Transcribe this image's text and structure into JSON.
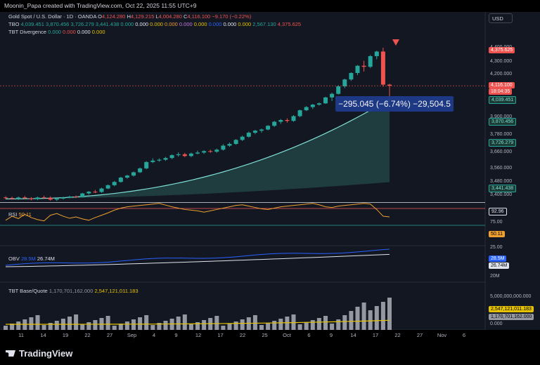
{
  "header": {
    "caption": "Moonin_Papa created with TradingView.com, Oct 22, 2025 11:55 UTC+9",
    "symbol_line": "Gold Spot / U.S. Dollar · 1D · OANDA",
    "ohlc": {
      "o_label": "O",
      "o": "4,124.280",
      "h_label": "H",
      "h": "4,129.215",
      "l_label": "L",
      "l": "4,004.280",
      "c_label": "C",
      "c": "4,116.100",
      "change": "−9.170 (−0.22%)"
    },
    "tbo_line": {
      "name": "TBO",
      "values": [
        "4,039.451",
        "3,870.456",
        "3,726.279",
        "3,441.438",
        "0.000",
        "0.000",
        "0.000",
        "0.000",
        "0.000",
        "0.000",
        "0.000",
        "0.000",
        "0.000",
        "2,567.130",
        "4,375.625"
      ]
    },
    "tbt_div_line": {
      "name": "TBT Divergence",
      "values": [
        "0.000",
        "0.000",
        "0.000",
        "0.000"
      ]
    },
    "currency_button": "USD"
  },
  "price_axis": {
    "labels": [
      "4,400.000",
      "4,300.000",
      "4,200.000",
      "3,900.000",
      "3,780.000",
      "3,660.000",
      "3,560.000",
      "3,480.000",
      "3,400.000"
    ],
    "tags": {
      "high": "4,375.625",
      "last": "4,116.100",
      "countdown": "18:04:35",
      "tbo_fast": "4,039.451",
      "tbo_mid": "3,870.456",
      "tbo_slow": "3,726.279",
      "tbo_base": "3,441.438"
    }
  },
  "measure": {
    "text": "−295.045 (−6.74%) −29,504.5"
  },
  "rsi": {
    "label": "RSI",
    "value": "50.11",
    "axis": [
      "92.96",
      "75.00",
      "25.00"
    ],
    "tag": "50.11"
  },
  "obv": {
    "label": "OBV",
    "v1": "28.5M",
    "v2": "26.74M",
    "axis": [
      "20M"
    ],
    "tags": [
      "28.5M",
      "26.74M"
    ]
  },
  "tbt": {
    "label": "TBT Base/Quote",
    "v1": "1,170,701,162.000",
    "v2": "2,547,121,011.183",
    "axis": [
      "5,000,000,000.000",
      "0.000"
    ],
    "tags": [
      "2,547,121,011.183",
      "1,170,701,162.000"
    ]
  },
  "x_axis": [
    "11",
    "14",
    "19",
    "22",
    "27",
    "Sep",
    "4",
    "9",
    "12",
    "17",
    "22",
    "25",
    "Oct",
    "6",
    "9",
    "14",
    "17",
    "22",
    "27",
    "Nov",
    "6"
  ],
  "footer": {
    "brand": "TradingView"
  },
  "colors": {
    "up": "#26a69a",
    "down": "#ef5350",
    "bg": "#131722",
    "ribbon": "#7fe0d8",
    "rsi_line": "#f0a030",
    "obv_fast": "#2962ff",
    "obv_slow": "#e0e3eb",
    "vol_avg": "#e6c300",
    "vol_bar": "#9598a1"
  },
  "chart_data": {
    "type": "candlestick",
    "symbol": "XAUUSD",
    "timeframe": "1D",
    "last": 4116.1,
    "high_marker": 4375.625,
    "candles": [
      [
        3340,
        3348,
        3328,
        3336
      ],
      [
        3336,
        3345,
        3325,
        3330
      ],
      [
        3330,
        3346,
        3322,
        3340
      ],
      [
        3340,
        3350,
        3330,
        3334
      ],
      [
        3334,
        3342,
        3320,
        3328
      ],
      [
        3328,
        3345,
        3322,
        3340
      ],
      [
        3340,
        3352,
        3332,
        3338
      ],
      [
        3338,
        3348,
        3318,
        3325
      ],
      [
        3325,
        3338,
        3315,
        3332
      ],
      [
        3332,
        3345,
        3326,
        3340
      ],
      [
        3340,
        3352,
        3334,
        3346
      ],
      [
        3346,
        3354,
        3336,
        3342
      ],
      [
        3342,
        3372,
        3340,
        3368
      ],
      [
        3368,
        3385,
        3360,
        3380
      ],
      [
        3380,
        3392,
        3370,
        3378
      ],
      [
        3378,
        3408,
        3372,
        3402
      ],
      [
        3402,
        3430,
        3398,
        3425
      ],
      [
        3425,
        3455,
        3418,
        3448
      ],
      [
        3448,
        3484,
        3442,
        3478
      ],
      [
        3478,
        3498,
        3470,
        3492
      ],
      [
        3492,
        3520,
        3485,
        3515
      ],
      [
        3515,
        3548,
        3510,
        3542
      ],
      [
        3542,
        3592,
        3536,
        3586
      ],
      [
        3586,
        3612,
        3578,
        3596
      ],
      [
        3596,
        3612,
        3588,
        3602
      ],
      [
        3602,
        3622,
        3594,
        3614
      ],
      [
        3614,
        3640,
        3606,
        3634
      ],
      [
        3634,
        3654,
        3624,
        3640
      ],
      [
        3640,
        3650,
        3620,
        3628
      ],
      [
        3628,
        3652,
        3620,
        3645
      ],
      [
        3645,
        3665,
        3640,
        3652
      ],
      [
        3652,
        3668,
        3642,
        3662
      ],
      [
        3662,
        3672,
        3650,
        3658
      ],
      [
        3658,
        3680,
        3650,
        3672
      ],
      [
        3672,
        3710,
        3666,
        3700
      ],
      [
        3700,
        3722,
        3692,
        3712
      ],
      [
        3712,
        3746,
        3706,
        3740
      ],
      [
        3740,
        3770,
        3732,
        3762
      ],
      [
        3762,
        3798,
        3755,
        3790
      ],
      [
        3790,
        3810,
        3780,
        3804
      ],
      [
        3804,
        3818,
        3790,
        3812
      ],
      [
        3812,
        3842,
        3806,
        3838
      ],
      [
        3838,
        3872,
        3830,
        3866
      ],
      [
        3866,
        3885,
        3852,
        3878
      ],
      [
        3878,
        3890,
        3860,
        3872
      ],
      [
        3872,
        3912,
        3866,
        3905
      ],
      [
        3905,
        3950,
        3898,
        3946
      ],
      [
        3946,
        3975,
        3940,
        3968
      ],
      [
        3968,
        3990,
        3955,
        3985
      ],
      [
        3985,
        4000,
        3978,
        3994
      ],
      [
        3994,
        4040,
        3990,
        4035
      ],
      [
        4035,
        4068,
        4010,
        4060
      ],
      [
        4060,
        4120,
        4055,
        4112
      ],
      [
        4112,
        4165,
        4100,
        4160
      ],
      [
        4160,
        4210,
        4150,
        4205
      ],
      [
        4205,
        4260,
        4190,
        4255
      ],
      [
        4255,
        4290,
        4215,
        4248
      ],
      [
        4248,
        4330,
        4240,
        4322
      ],
      [
        4322,
        4360,
        4300,
        4354
      ],
      [
        4354,
        4381,
        4110,
        4124
      ],
      [
        4124,
        4129,
        4004,
        4116
      ]
    ],
    "rsi_values": [
      40,
      52,
      45,
      58,
      48,
      42,
      38,
      55,
      60,
      52,
      46,
      50,
      44,
      40,
      48,
      55,
      62,
      70,
      76,
      80,
      82,
      84,
      86,
      88,
      90,
      85,
      80,
      76,
      72,
      70,
      68,
      64,
      68,
      72,
      76,
      80,
      84,
      86,
      82,
      78,
      74,
      72,
      76,
      80,
      82,
      84,
      86,
      88,
      90,
      86,
      80,
      78,
      82,
      84,
      86,
      88,
      90,
      88,
      72,
      52,
      50
    ],
    "obv": {
      "fast": "28.5M",
      "slow": "26.74M"
    },
    "volume_ticks": [
      "5,000,000,000.000",
      "0.000"
    ]
  }
}
